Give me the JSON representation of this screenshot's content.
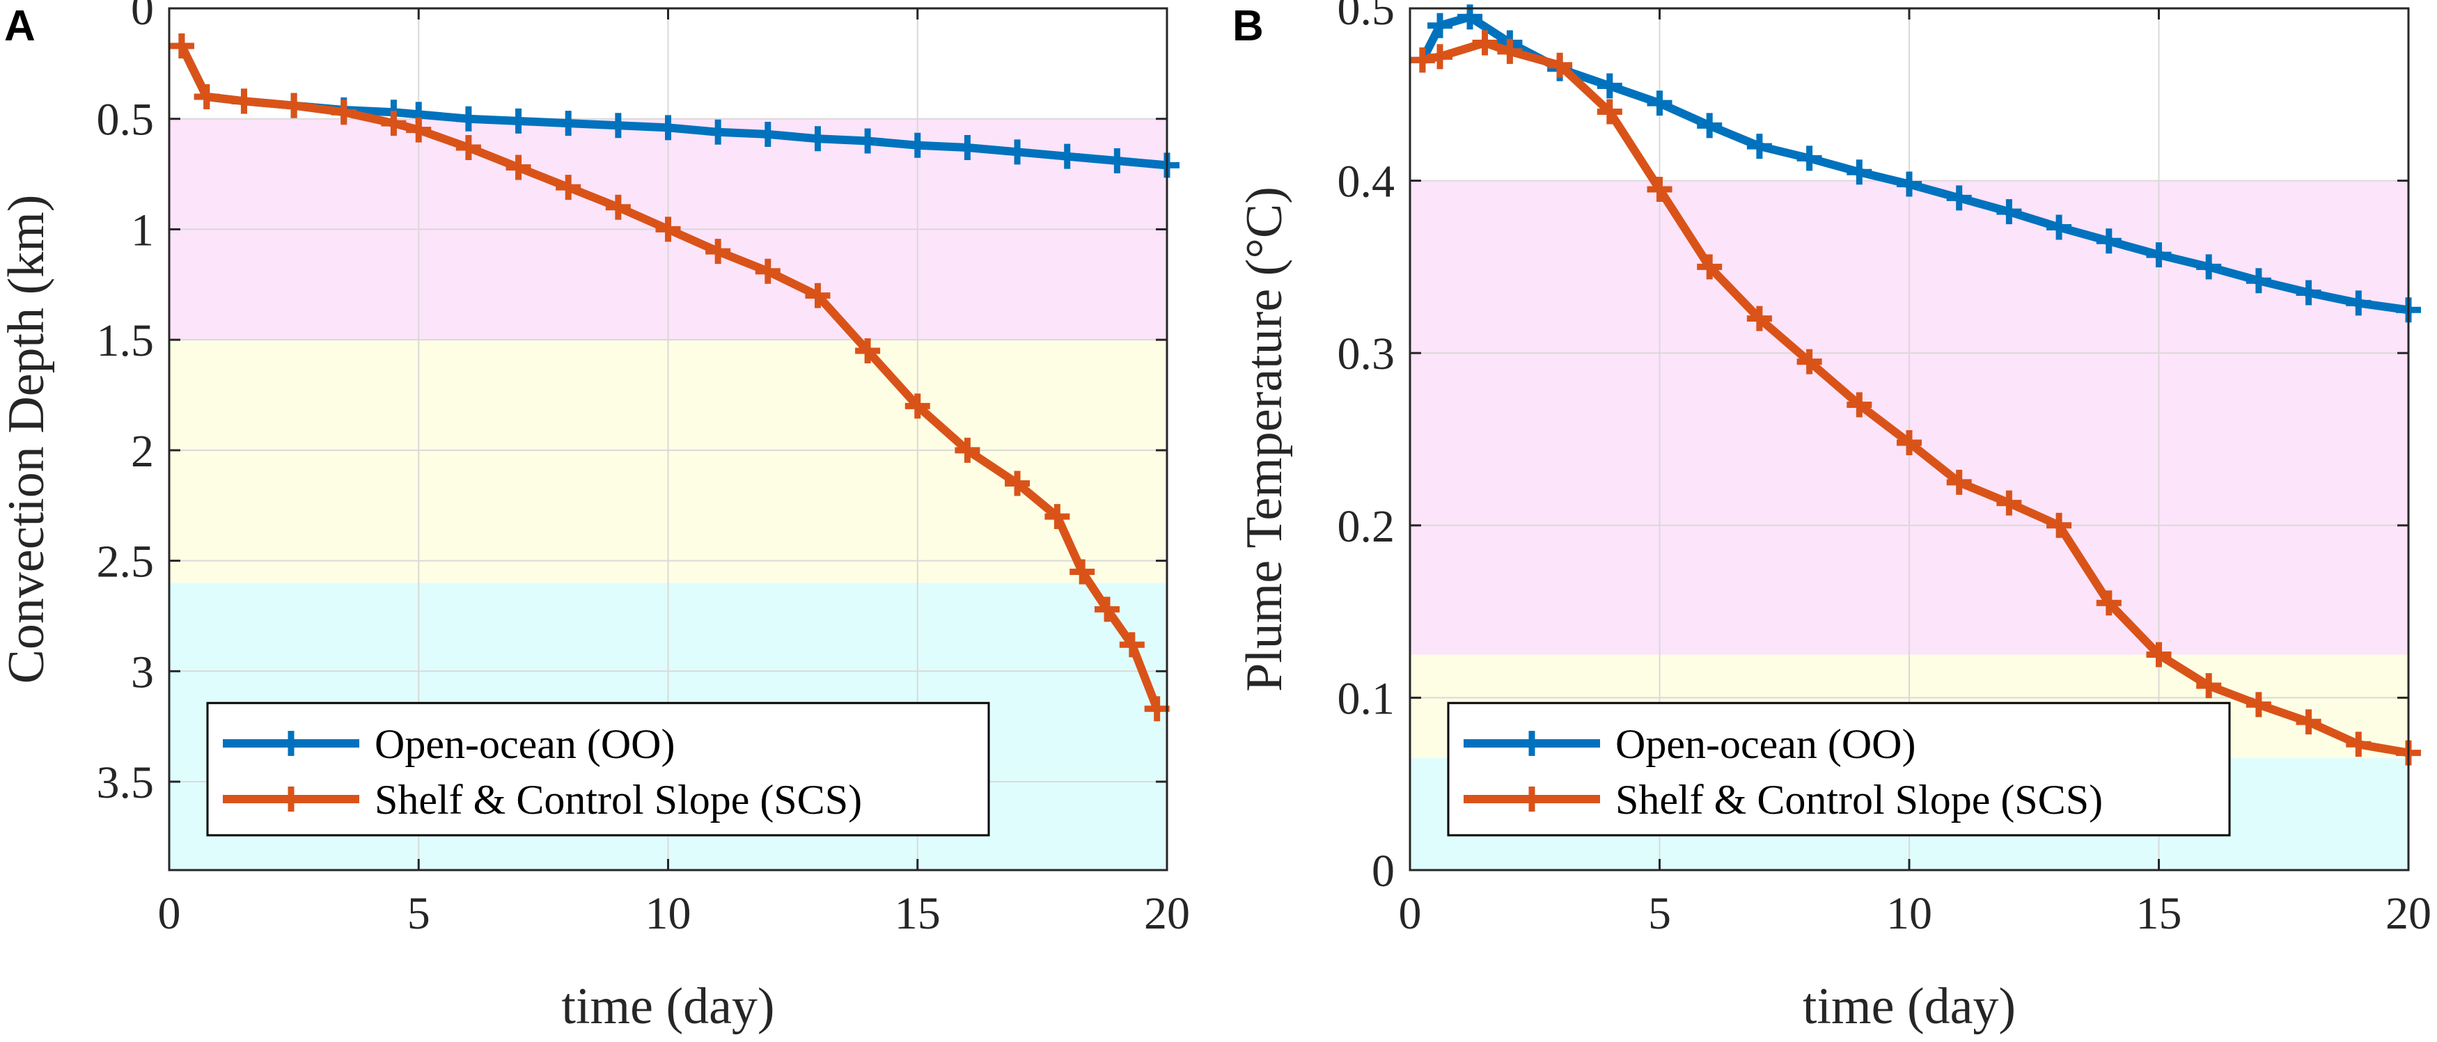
{
  "colors": {
    "oo": "#0072BD",
    "scs": "#D95319",
    "band_magenta": "#FCE4FA",
    "band_yellow": "#FEFEE4",
    "band_cyan": "#E0FDFD",
    "grid": "#d9d9d9",
    "axis": "#262626"
  },
  "chart_data": [
    {
      "type": "line",
      "panel_letter": "A",
      "title": "",
      "xlabel": "time (day)",
      "ylabel": "Convection Depth (km)",
      "xlim": [
        0,
        20
      ],
      "ylim": [
        0,
        3.9
      ],
      "y_reversed": true,
      "grid": true,
      "xticks": [
        0,
        5,
        10,
        15,
        20
      ],
      "xtick_labels": [
        "0",
        "5",
        "10",
        "15",
        "20"
      ],
      "yticks": [
        0,
        0.5,
        1,
        1.5,
        2,
        2.5,
        3,
        3.5
      ],
      "ytick_labels": [
        "0",
        "0.5",
        "1",
        "1.5",
        "2",
        "2.5",
        "3",
        "3.5"
      ],
      "legend_position": "bottom-left",
      "bands": [
        {
          "from": 0.5,
          "to": 1.5,
          "color_key": "band_magenta"
        },
        {
          "from": 1.5,
          "to": 2.6,
          "color_key": "band_yellow"
        },
        {
          "from": 2.6,
          "to": 3.9,
          "color_key": "band_cyan"
        }
      ],
      "series": [
        {
          "name": "Open-ocean (OO)",
          "color_key": "oo",
          "points": [
            [
              0.25,
              0.17
            ],
            [
              0.75,
              0.4
            ],
            [
              1.5,
              0.42
            ],
            [
              2.5,
              0.44
            ],
            [
              3.5,
              0.46
            ],
            [
              4.5,
              0.47
            ],
            [
              5,
              0.48
            ],
            [
              6,
              0.5
            ],
            [
              7,
              0.51
            ],
            [
              8,
              0.52
            ],
            [
              9,
              0.53
            ],
            [
              10,
              0.54
            ],
            [
              11,
              0.56
            ],
            [
              12,
              0.57
            ],
            [
              13,
              0.59
            ],
            [
              14,
              0.6
            ],
            [
              15,
              0.62
            ],
            [
              16,
              0.63
            ],
            [
              17,
              0.65
            ],
            [
              18,
              0.67
            ],
            [
              19,
              0.69
            ],
            [
              20,
              0.71
            ]
          ]
        },
        {
          "name": "Shelf & Control Slope (SCS)",
          "color_key": "scs",
          "points": [
            [
              0.25,
              0.17
            ],
            [
              0.75,
              0.4
            ],
            [
              1.5,
              0.42
            ],
            [
              2.5,
              0.44
            ],
            [
              3.5,
              0.47
            ],
            [
              4.5,
              0.52
            ],
            [
              5,
              0.55
            ],
            [
              6,
              0.63
            ],
            [
              7,
              0.72
            ],
            [
              8,
              0.81
            ],
            [
              9,
              0.9
            ],
            [
              10,
              1.0
            ],
            [
              11,
              1.1
            ],
            [
              12,
              1.19
            ],
            [
              13,
              1.3
            ],
            [
              14,
              1.55
            ],
            [
              15,
              1.8
            ],
            [
              16,
              2.0
            ],
            [
              17,
              2.15
            ],
            [
              17.8,
              2.3
            ],
            [
              18.3,
              2.55
            ],
            [
              18.8,
              2.72
            ],
            [
              19.3,
              2.88
            ],
            [
              19.8,
              3.17
            ]
          ]
        }
      ]
    },
    {
      "type": "line",
      "panel_letter": "B",
      "title": "",
      "xlabel": "time (day)",
      "ylabel": "Plume Temperature (°C)",
      "xlim": [
        0,
        20
      ],
      "ylim": [
        0,
        0.5
      ],
      "y_reversed": false,
      "grid": true,
      "xticks": [
        0,
        5,
        10,
        15,
        20
      ],
      "xtick_labels": [
        "0",
        "5",
        "10",
        "15",
        "20"
      ],
      "yticks": [
        0,
        0.1,
        0.2,
        0.3,
        0.4,
        0.5
      ],
      "ytick_labels": [
        "0",
        "0.1",
        "0.2",
        "0.3",
        "0.4",
        "0.5"
      ],
      "legend_position": "bottom-left",
      "bands": [
        {
          "from": 0.125,
          "to": 0.4,
          "color_key": "band_magenta"
        },
        {
          "from": 0.065,
          "to": 0.125,
          "color_key": "band_yellow"
        },
        {
          "from": 0.0,
          "to": 0.065,
          "color_key": "band_cyan"
        }
      ],
      "series": [
        {
          "name": "Open-ocean (OO)",
          "color_key": "oo",
          "points": [
            [
              0.25,
              0.47
            ],
            [
              0.6,
              0.49
            ],
            [
              1.2,
              0.495
            ],
            [
              2,
              0.48
            ],
            [
              3,
              0.465
            ],
            [
              4,
              0.455
            ],
            [
              5,
              0.445
            ],
            [
              6,
              0.432
            ],
            [
              7,
              0.42
            ],
            [
              8,
              0.413
            ],
            [
              9,
              0.405
            ],
            [
              10,
              0.398
            ],
            [
              11,
              0.39
            ],
            [
              12,
              0.382
            ],
            [
              13,
              0.373
            ],
            [
              14,
              0.365
            ],
            [
              15,
              0.357
            ],
            [
              16,
              0.35
            ],
            [
              17,
              0.342
            ],
            [
              18,
              0.335
            ],
            [
              19,
              0.329
            ],
            [
              20,
              0.325
            ]
          ]
        },
        {
          "name": "Shelf & Control Slope (SCS)",
          "color_key": "scs",
          "points": [
            [
              0.25,
              0.47
            ],
            [
              0.6,
              0.472
            ],
            [
              1.5,
              0.48
            ],
            [
              2,
              0.475
            ],
            [
              3,
              0.467
            ],
            [
              4,
              0.44
            ],
            [
              5,
              0.395
            ],
            [
              6,
              0.35
            ],
            [
              7,
              0.32
            ],
            [
              8,
              0.295
            ],
            [
              9,
              0.27
            ],
            [
              10,
              0.248
            ],
            [
              11,
              0.225
            ],
            [
              12,
              0.213
            ],
            [
              13,
              0.2
            ],
            [
              14,
              0.155
            ],
            [
              15,
              0.125
            ],
            [
              16,
              0.107
            ],
            [
              17,
              0.096
            ],
            [
              18,
              0.086
            ],
            [
              19,
              0.073
            ],
            [
              20,
              0.068
            ]
          ]
        }
      ]
    }
  ]
}
